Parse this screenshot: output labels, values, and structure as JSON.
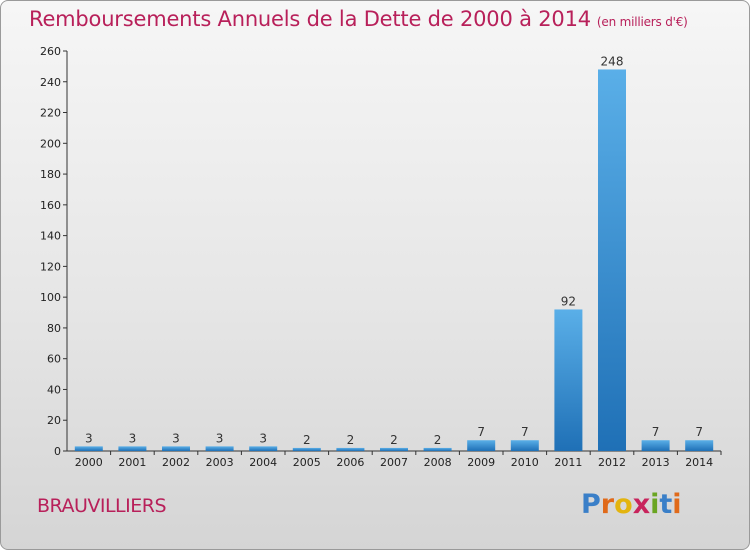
{
  "title": "Remboursements Annuels de la Dette de 2000 à 2014",
  "subtitle": "(en milliers d'€)",
  "commune": "BRAUVILLIERS",
  "logo": {
    "text": "Proxiti",
    "letters": [
      "P",
      "r",
      "o",
      "x",
      "i",
      "t",
      "i"
    ],
    "colors": [
      "#3a7fc8",
      "#e06a1a",
      "#e3b40f",
      "#c8245c",
      "#6aa522",
      "#3a7fc8",
      "#e06a1a"
    ]
  },
  "colors": {
    "accent": "#b8205a",
    "bar_top": "#5aafe8",
    "bar_bottom": "#1f70b6"
  },
  "chart_data": {
    "type": "bar",
    "categories": [
      "2000",
      "2001",
      "2002",
      "2003",
      "2004",
      "2005",
      "2006",
      "2007",
      "2008",
      "2009",
      "2010",
      "2011",
      "2012",
      "2013",
      "2014"
    ],
    "values": [
      3,
      3,
      3,
      3,
      3,
      2,
      2,
      2,
      2,
      7,
      7,
      92,
      248,
      7,
      7
    ],
    "data_labels": [
      "3",
      "3",
      "3",
      "3",
      "3",
      "2",
      "2",
      "2",
      "2",
      "7",
      "7",
      "92",
      "248",
      "7",
      "7"
    ],
    "ylim": [
      0,
      260
    ],
    "yticks": [
      0,
      20,
      40,
      60,
      80,
      100,
      120,
      140,
      160,
      180,
      200,
      220,
      240,
      260
    ],
    "ytick_labels": [
      "0",
      "20",
      "40",
      "60",
      "80",
      "100",
      "120",
      "140",
      "160",
      "180",
      "200",
      "220",
      "240",
      "260"
    ],
    "grid": false,
    "xlabel": "",
    "ylabel": ""
  }
}
